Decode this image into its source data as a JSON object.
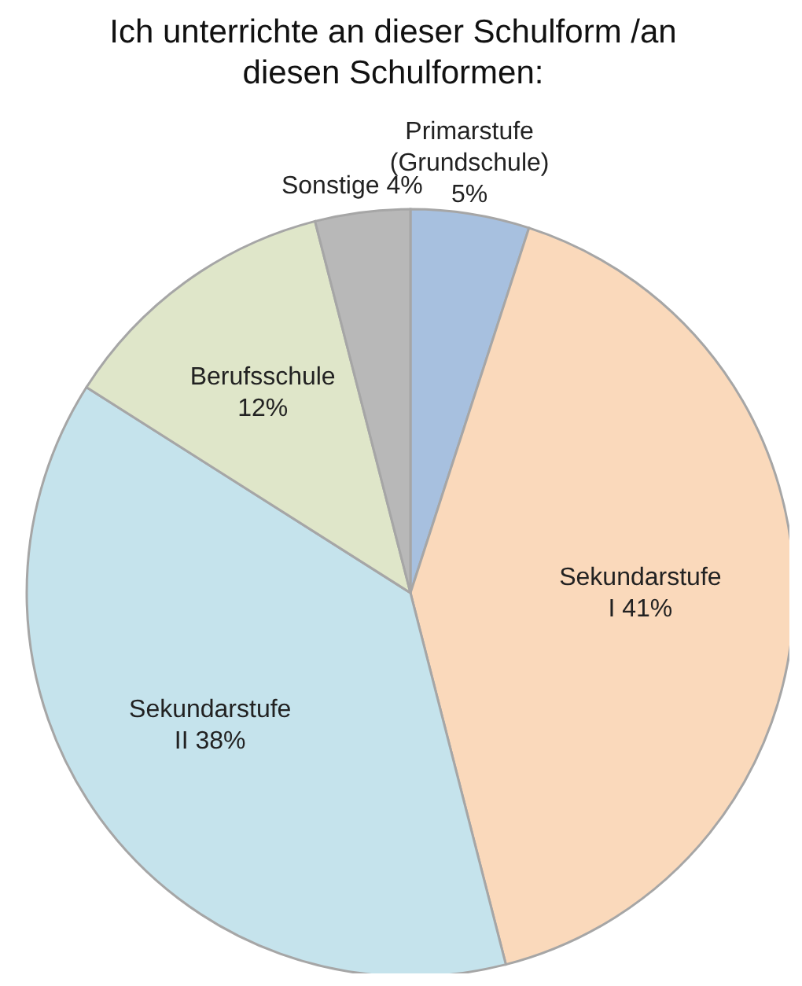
{
  "chart_data": {
    "type": "pie",
    "title": "Ich unterrichte an dieser Schulform /an diesen Schulformen:",
    "categories": [
      "Primarstufe (Grundschule)",
      "Sekundarstufe I",
      "Sekundarstufe II",
      "Berufsschule",
      "Sonstige"
    ],
    "values": [
      5,
      41,
      38,
      12,
      4
    ],
    "value_labels": [
      "5%",
      "41%",
      "38%",
      "12%",
      "4%"
    ],
    "colors": [
      "#a7c0df",
      "#fad9bb",
      "#c5e3ec",
      "#dfe6c9",
      "#b8b8b8"
    ],
    "legend": false
  }
}
